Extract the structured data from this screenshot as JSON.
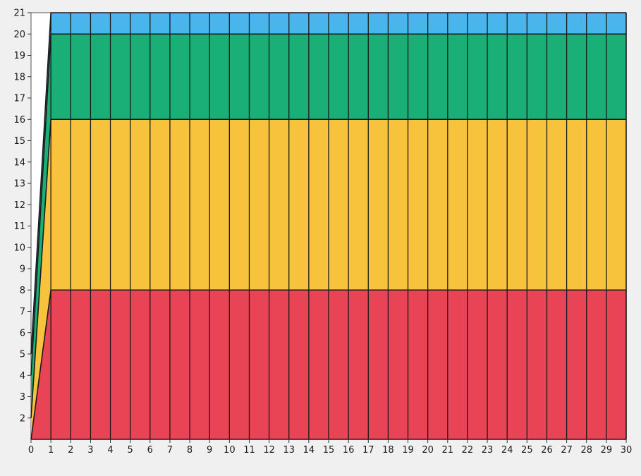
{
  "chart_data": {
    "type": "area",
    "stacked": true,
    "x": [
      0,
      1,
      2,
      3,
      4,
      5,
      6,
      7,
      8,
      9,
      10,
      11,
      12,
      13,
      14,
      15,
      16,
      17,
      18,
      19,
      20,
      21,
      22,
      23,
      24,
      25,
      26,
      27,
      28,
      29,
      30
    ],
    "xlim": [
      0,
      30
    ],
    "ylim": [
      1,
      21
    ],
    "x_ticks": [
      "0",
      "1",
      "2",
      "3",
      "4",
      "5",
      "6",
      "7",
      "8",
      "9",
      "10",
      "11",
      "12",
      "13",
      "14",
      "15",
      "16",
      "17",
      "18",
      "19",
      "20",
      "21",
      "22",
      "23",
      "24",
      "25",
      "26",
      "27",
      "28",
      "29",
      "30"
    ],
    "y_ticks": [
      "2",
      "3",
      "4",
      "5",
      "6",
      "7",
      "8",
      "9",
      "10",
      "11",
      "12",
      "13",
      "14",
      "15",
      "16",
      "17",
      "18",
      "19",
      "20",
      "21"
    ],
    "vertical_gridlines": true,
    "series": [
      {
        "color": "#e84455",
        "upper": [
          1,
          8,
          8,
          8,
          8,
          8,
          8,
          8,
          8,
          8,
          8,
          8,
          8,
          8,
          8,
          8,
          8,
          8,
          8,
          8,
          8,
          8,
          8,
          8,
          8,
          8,
          8,
          8,
          8,
          8,
          8
        ]
      },
      {
        "color": "#f8c33c",
        "upper": [
          2,
          16,
          16,
          16,
          16,
          16,
          16,
          16,
          16,
          16,
          16,
          16,
          16,
          16,
          16,
          16,
          16,
          16,
          16,
          16,
          16,
          16,
          16,
          16,
          16,
          16,
          16,
          16,
          16,
          16,
          16
        ]
      },
      {
        "color": "#1aaf76",
        "upper": [
          4,
          20,
          20,
          20,
          20,
          20,
          20,
          20,
          20,
          20,
          20,
          20,
          20,
          20,
          20,
          20,
          20,
          20,
          20,
          20,
          20,
          20,
          20,
          20,
          20,
          20,
          20,
          20,
          20,
          20,
          20
        ]
      },
      {
        "color": "#49b5ea",
        "upper": [
          5,
          21,
          21,
          21,
          21,
          21,
          21,
          21,
          21,
          21,
          21,
          21,
          21,
          21,
          21,
          21,
          21,
          21,
          21,
          21,
          21,
          21,
          21,
          21,
          21,
          21,
          21,
          21,
          21,
          21,
          21
        ]
      }
    ],
    "title": "",
    "xlabel": "",
    "ylabel": ""
  }
}
